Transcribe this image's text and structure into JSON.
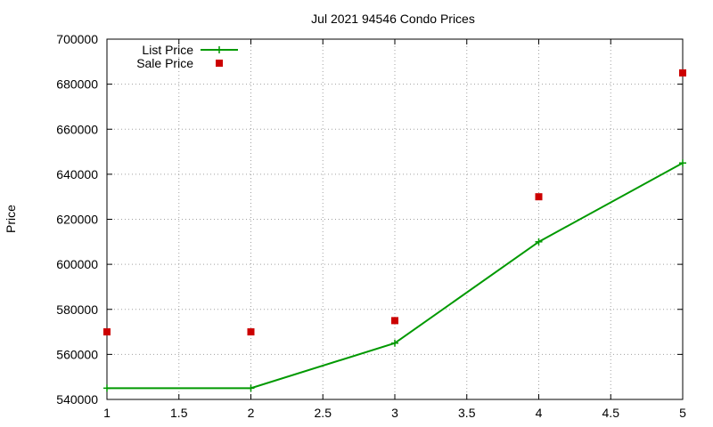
{
  "chart_data": {
    "type": "line",
    "title": "Jul 2021 94546 Condo Prices",
    "xlabel": "",
    "ylabel": "Price",
    "xlim": [
      1,
      5
    ],
    "ylim": [
      540000,
      700000
    ],
    "x_ticks": [
      "1",
      "1.5",
      "2",
      "2.5",
      "3",
      "3.5",
      "4",
      "4.5",
      "5"
    ],
    "y_ticks": [
      "540000",
      "560000",
      "580000",
      "600000",
      "620000",
      "640000",
      "660000",
      "680000",
      "700000"
    ],
    "grid": true,
    "legend_position": "top-left",
    "series": [
      {
        "name": "List Price",
        "style": "line-with-plus-markers",
        "color": "#009900",
        "x": [
          1,
          2,
          3,
          4,
          5
        ],
        "y": [
          545000,
          545000,
          565000,
          610000,
          645000
        ]
      },
      {
        "name": "Sale Price",
        "style": "square-markers",
        "color": "#cc0000",
        "x": [
          1,
          2,
          3,
          4,
          5
        ],
        "y": [
          570000,
          570000,
          575000,
          630000,
          685000
        ]
      }
    ]
  }
}
